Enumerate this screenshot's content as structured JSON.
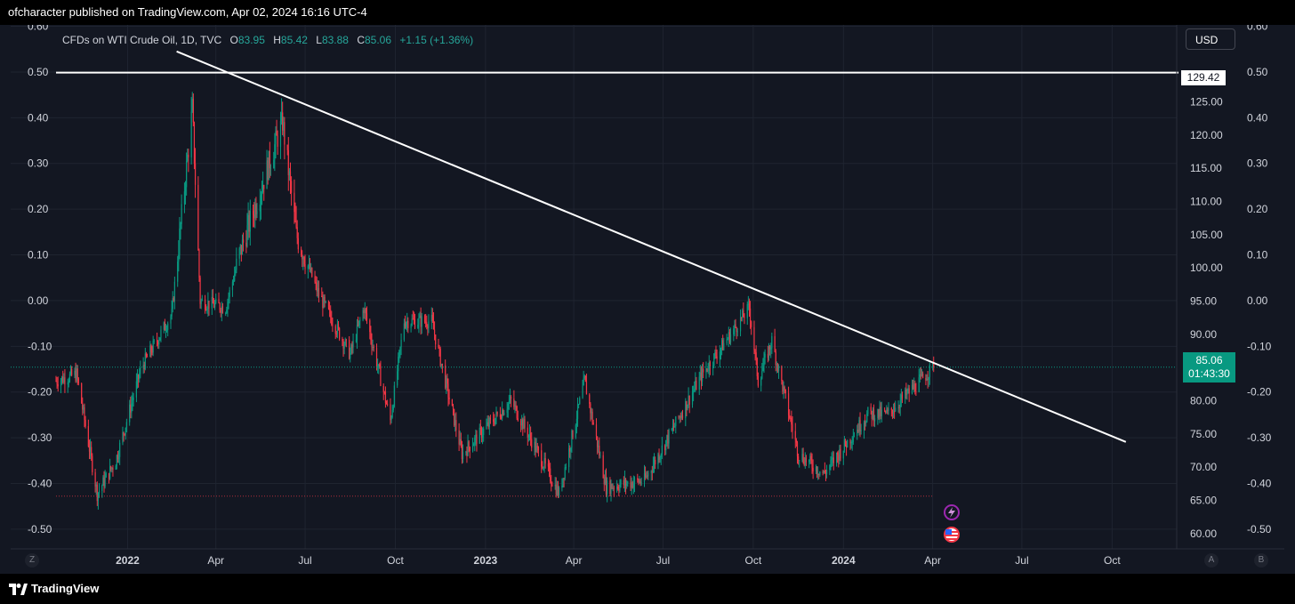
{
  "header": {
    "publisher_line": "ofcharacter published on TradingView.com, Apr 02, 2024 16:16 UTC-4"
  },
  "legend": {
    "symbol": "CFDs on WTI Crude Oil, 1D, TVC",
    "open_label": "O",
    "open": "83.95",
    "high_label": "H",
    "high": "85.42",
    "low_label": "L",
    "low": "83.88",
    "close_label": "C",
    "close": "85.06",
    "change": "+1.15 (+1.36%)"
  },
  "currency_button": "USD",
  "last_price": {
    "value": "85.06",
    "countdown": "01:43:30"
  },
  "level_label": "129.42",
  "footer": {
    "brand": "TradingView"
  },
  "corners": {
    "left": "Z",
    "auto": "A",
    "b": "B"
  },
  "colors": {
    "up": "#089981",
    "down": "#f23645",
    "line": "#ffffff",
    "background": "#131722"
  },
  "icons": {
    "lightning": "lightning-icon",
    "flag": "us-flag-icon"
  },
  "chart_data": {
    "type": "candlestick",
    "y_price_ticks": [
      "125.00",
      "120.00",
      "115.00",
      "110.00",
      "105.00",
      "100.00",
      "95.00",
      "90.00",
      "85.00",
      "80.00",
      "75.00",
      "70.00",
      "65.00",
      "60.00"
    ],
    "y_price_values": [
      125,
      120,
      115,
      110,
      105,
      100,
      95,
      90,
      85,
      80,
      75,
      70,
      65,
      60
    ],
    "y_left_ticks": [
      "0.60",
      "0.50",
      "0.40",
      "0.30",
      "0.20",
      "0.10",
      "0.00",
      "-0.10",
      "-0.20",
      "-0.30",
      "-0.40",
      "-0.50"
    ],
    "y_left_values": [
      0.6,
      0.5,
      0.4,
      0.3,
      0.2,
      0.1,
      0.0,
      -0.1,
      -0.2,
      -0.3,
      -0.4,
      -0.5
    ],
    "x_ticks": [
      "2022",
      "Apr",
      "Jul",
      "Oct",
      "2023",
      "Apr",
      "Jul",
      "Oct",
      "2024",
      "Apr",
      "Jul",
      "Oct"
    ],
    "x_tick_dates": [
      "2022-01-01",
      "2022-04-01",
      "2022-07-01",
      "2022-10-01",
      "2023-01-01",
      "2023-04-01",
      "2023-07-01",
      "2023-10-01",
      "2024-01-01",
      "2024-04-01",
      "2024-07-01",
      "2024-10-01"
    ],
    "x_range": [
      "2021-10-20",
      "2024-11-15"
    ],
    "price_range": [
      57.7,
      136.6
    ],
    "left_range": [
      -0.543,
      0.603
    ],
    "anchors": [
      [
        "2021-10-20",
        83
      ],
      [
        "2021-11-10",
        84
      ],
      [
        "2021-12-01",
        66
      ],
      [
        "2021-12-20",
        71
      ],
      [
        "2022-01-15",
        85
      ],
      [
        "2022-02-15",
        93
      ],
      [
        "2022-03-08",
        124
      ],
      [
        "2022-03-16",
        95
      ],
      [
        "2022-04-11",
        94
      ],
      [
        "2022-04-25",
        102
      ],
      [
        "2022-06-08",
        122
      ],
      [
        "2022-06-22",
        105
      ],
      [
        "2022-07-15",
        96
      ],
      [
        "2022-08-16",
        87
      ],
      [
        "2022-08-30",
        94
      ],
      [
        "2022-09-26",
        77
      ],
      [
        "2022-10-10",
        92
      ],
      [
        "2022-11-07",
        92
      ],
      [
        "2022-12-08",
        72
      ],
      [
        "2023-01-27",
        80
      ],
      [
        "2023-03-17",
        66
      ],
      [
        "2023-04-12",
        83
      ],
      [
        "2023-05-04",
        67
      ],
      [
        "2023-06-12",
        68
      ],
      [
        "2023-07-12",
        76
      ],
      [
        "2023-08-10",
        84
      ],
      [
        "2023-09-27",
        94
      ],
      [
        "2023-10-06",
        83
      ],
      [
        "2023-10-20",
        89
      ],
      [
        "2023-11-16",
        72
      ],
      [
        "2023-12-12",
        69
      ],
      [
        "2024-01-26",
        78
      ],
      [
        "2024-02-15",
        78
      ],
      [
        "2024-04-02",
        85.06
      ]
    ],
    "last_price": 85.06,
    "dotted_low": 65.64,
    "horizontal_level": 129.42,
    "trendline": {
      "start": [
        "2022-02-20",
        132.6
      ],
      "end": [
        "2024-10-15",
        73.8
      ]
    }
  }
}
